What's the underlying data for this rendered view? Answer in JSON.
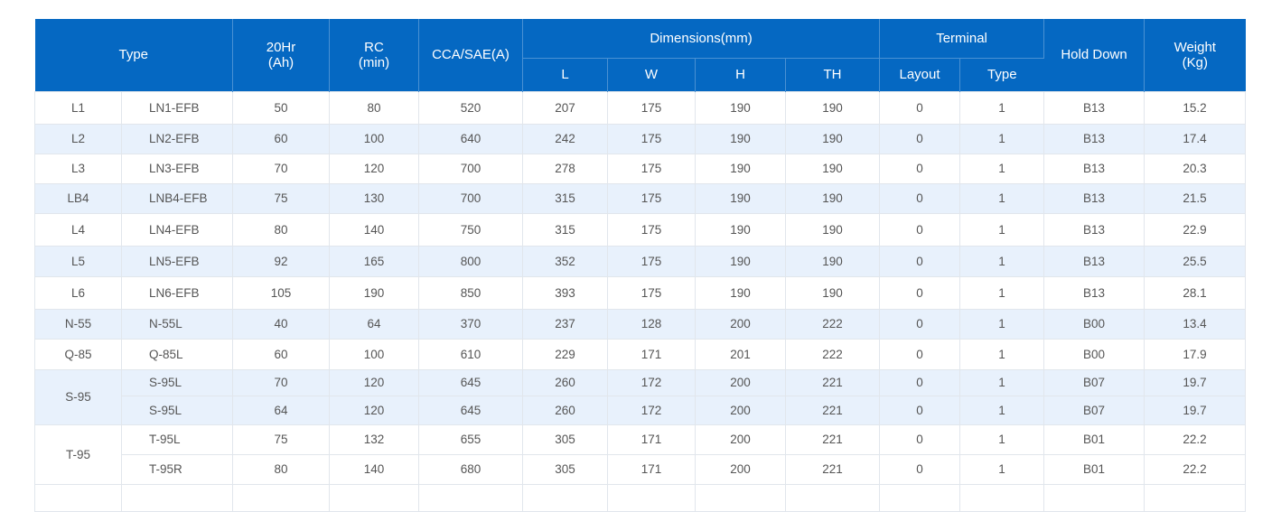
{
  "table": {
    "headers": {
      "type": "Type",
      "ah_line1": "20Hr",
      "ah_line2": "(Ah)",
      "rc_line1": "RC",
      "rc_line2": "(min)",
      "cca": "CCA/SAE(A)",
      "dimensions": "Dimensions(mm)",
      "dim_l": "L",
      "dim_w": "W",
      "dim_h": "H",
      "dim_th": "TH",
      "terminal": "Terminal",
      "term_layout": "Layout",
      "term_type": "Type",
      "hold_down": "Hold Down",
      "weight_line1": "Weight",
      "weight_line2": "(Kg)"
    },
    "rows": [
      {
        "group": "L1",
        "model": "LN1-EFB",
        "ah": "50",
        "rc": "80",
        "cca": "520",
        "l": "207",
        "w": "175",
        "h": "190",
        "th": "190",
        "layout": "0",
        "ttype": "1",
        "hold": "B13",
        "weight": "15.2"
      },
      {
        "group": "L2",
        "model": "LN2-EFB",
        "ah": "60",
        "rc": "100",
        "cca": "640",
        "l": "242",
        "w": "175",
        "h": "190",
        "th": "190",
        "layout": "0",
        "ttype": "1",
        "hold": "B13",
        "weight": "17.4"
      },
      {
        "group": "L3",
        "model": "LN3-EFB",
        "ah": "70",
        "rc": "120",
        "cca": "700",
        "l": "278",
        "w": "175",
        "h": "190",
        "th": "190",
        "layout": "0",
        "ttype": "1",
        "hold": "B13",
        "weight": "20.3"
      },
      {
        "group": "LB4",
        "model": "LNB4-EFB",
        "ah": "75",
        "rc": "130",
        "cca": "700",
        "l": "315",
        "w": "175",
        "h": "190",
        "th": "190",
        "layout": "0",
        "ttype": "1",
        "hold": "B13",
        "weight": "21.5"
      },
      {
        "group": "L4",
        "model": "LN4-EFB",
        "ah": "80",
        "rc": "140",
        "cca": "750",
        "l": "315",
        "w": "175",
        "h": "190",
        "th": "190",
        "layout": "0",
        "ttype": "1",
        "hold": "B13",
        "weight": "22.9"
      },
      {
        "group": "L5",
        "model": "LN5-EFB",
        "ah": "92",
        "rc": "165",
        "cca": "800",
        "l": "352",
        "w": "175",
        "h": "190",
        "th": "190",
        "layout": "0",
        "ttype": "1",
        "hold": "B13",
        "weight": "25.5"
      },
      {
        "group": "L6",
        "model": "LN6-EFB",
        "ah": "105",
        "rc": "190",
        "cca": "850",
        "l": "393",
        "w": "175",
        "h": "190",
        "th": "190",
        "layout": "0",
        "ttype": "1",
        "hold": "B13",
        "weight": "28.1"
      },
      {
        "group": "N-55",
        "model": "N-55L",
        "ah": "40",
        "rc": "64",
        "cca": "370",
        "l": "237",
        "w": "128",
        "h": "200",
        "th": "222",
        "layout": "0",
        "ttype": "1",
        "hold": "B00",
        "weight": "13.4"
      },
      {
        "group": "Q-85",
        "model": "Q-85L",
        "ah": "60",
        "rc": "100",
        "cca": "610",
        "l": "229",
        "w": "171",
        "h": "201",
        "th": "222",
        "layout": "0",
        "ttype": "1",
        "hold": "B00",
        "weight": "17.9"
      },
      {
        "group": "S-95",
        "model": "S-95L",
        "ah": "70",
        "rc": "120",
        "cca": "645",
        "l": "260",
        "w": "172",
        "h": "200",
        "th": "221",
        "layout": "0",
        "ttype": "1",
        "hold": "B07",
        "weight": "19.7"
      },
      {
        "group": "",
        "model": "S-95L",
        "ah": "64",
        "rc": "120",
        "cca": "645",
        "l": "260",
        "w": "172",
        "h": "200",
        "th": "221",
        "layout": "0",
        "ttype": "1",
        "hold": "B07",
        "weight": "19.7"
      },
      {
        "group": "T-95",
        "model": "T-95L",
        "ah": "75",
        "rc": "132",
        "cca": "655",
        "l": "305",
        "w": "171",
        "h": "200",
        "th": "221",
        "layout": "0",
        "ttype": "1",
        "hold": "B01",
        "weight": "22.2"
      },
      {
        "group": "",
        "model": "T-95R",
        "ah": "80",
        "rc": "140",
        "cca": "680",
        "l": "305",
        "w": "171",
        "h": "200",
        "th": "221",
        "layout": "0",
        "ttype": "1",
        "hold": "B01",
        "weight": "22.2"
      }
    ],
    "colors": {
      "header_bg": "#0568c2",
      "header_text": "#ffffff",
      "alt_row_bg": "#e8f1fc",
      "border": "#e1e6ec"
    }
  }
}
